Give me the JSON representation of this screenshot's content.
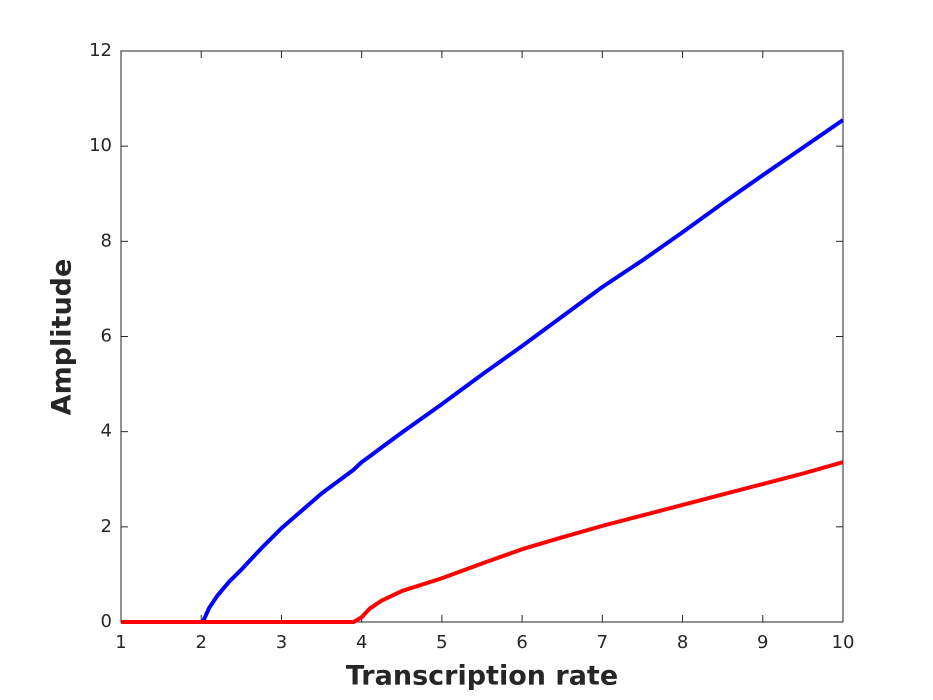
{
  "chart_data": {
    "type": "line",
    "xlabel": "Transcription rate",
    "ylabel": "Amplitude",
    "x": [
      1,
      2,
      2.02,
      2.1,
      2.2,
      2.35,
      2.5,
      2.75,
      3,
      3.5,
      3.9,
      4,
      4.1,
      4.25,
      4.5,
      5,
      5.5,
      6,
      6.5,
      7,
      7.5,
      8,
      8.5,
      9,
      9.5,
      10
    ],
    "series": [
      {
        "color": "#0000ff",
        "values": [
          0,
          0,
          0,
          0.3,
          0.55,
          0.85,
          1.1,
          1.55,
          1.97,
          2.7,
          3.2,
          3.36,
          3.48,
          3.67,
          3.98,
          4.58,
          5.2,
          5.8,
          6.42,
          7.04,
          7.6,
          8.19,
          8.8,
          9.39,
          9.97,
          10.55
        ]
      },
      {
        "color": "#ff0000",
        "values": [
          0,
          0,
          0,
          0,
          0,
          0,
          0,
          0,
          0,
          0,
          0,
          0.1,
          0.28,
          0.45,
          0.65,
          0.92,
          1.23,
          1.53,
          1.78,
          2.02,
          2.24,
          2.46,
          2.68,
          2.9,
          3.12,
          3.36
        ]
      }
    ],
    "xlim": [
      1,
      10
    ],
    "xticks": [
      1,
      2,
      3,
      4,
      5,
      6,
      7,
      8,
      9,
      10
    ],
    "ylim": [
      0,
      12
    ],
    "yticks": [
      0,
      2,
      4,
      6,
      8,
      10,
      12
    ],
    "grid": false
  }
}
